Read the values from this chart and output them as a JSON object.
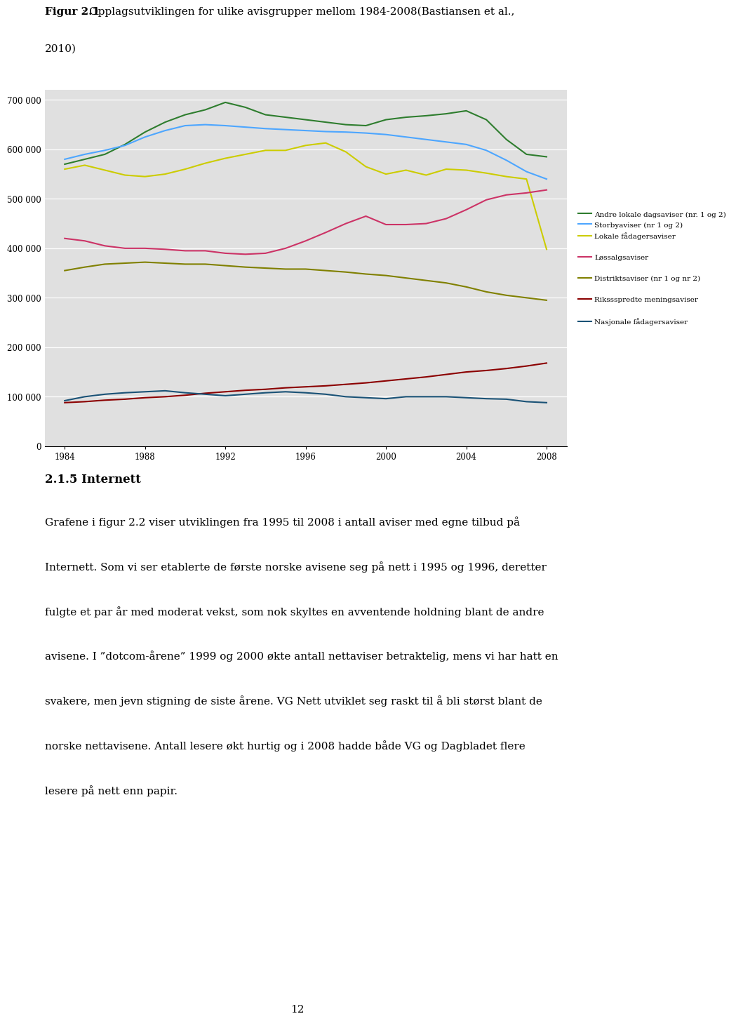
{
  "title_bold": "Figur 2.1",
  "title_rest": ": Opplagsutviklingen for ulike avisgrupper mellom 1984-2008(Bastiansen et al.,",
  "title_line2": "2010)",
  "section_header": "2.1.5 Internett",
  "body_text_lines": [
    "Grafene i figur 2.2 viser utviklingen fra 1995 til 2008 i antall aviser med egne tilbud på",
    "Internett. Som vi ser etablerte de første norske avisene seg på nett i 1995 og 1996, deretter",
    "fulgte et par år med moderat vekst, som nok skyltes en avventende holdning blant de andre",
    "avisene. I ”dotcom-årene” 1999 og 2000 økte antall nettaviser betraktelig, mens vi har hatt en",
    "svakere, men jevn stigning de siste årene. VG Nett utviklet seg raskt til å bli størst blant de",
    "norske nettavisene. Antall lesere økt hurtig og i 2008 hadde både VG og Dagbladet flere",
    "lesere på nett enn papir."
  ],
  "page_number": "12",
  "years": [
    1984,
    1985,
    1986,
    1987,
    1988,
    1989,
    1990,
    1991,
    1992,
    1993,
    1994,
    1995,
    1996,
    1997,
    1998,
    1999,
    2000,
    2001,
    2002,
    2003,
    2004,
    2005,
    2006,
    2007,
    2008
  ],
  "series": {
    "Andre lokale dagsaviser (nr. 1 og 2)": {
      "color": "#2e7d2e",
      "data": [
        570000,
        580000,
        590000,
        610000,
        635000,
        655000,
        670000,
        680000,
        695000,
        685000,
        670000,
        665000,
        660000,
        655000,
        650000,
        648000,
        660000,
        665000,
        668000,
        672000,
        678000,
        660000,
        620000,
        590000,
        585000
      ]
    },
    "Storbyaviser (nr 1 og 2)": {
      "color": "#4da6ff",
      "data": [
        580000,
        590000,
        598000,
        608000,
        625000,
        638000,
        648000,
        650000,
        648000,
        645000,
        642000,
        640000,
        638000,
        636000,
        635000,
        633000,
        630000,
        625000,
        620000,
        615000,
        610000,
        598000,
        578000,
        555000,
        540000
      ]
    },
    "Lokale fådagersaviser": {
      "color": "#cccc00",
      "data": [
        560000,
        568000,
        558000,
        548000,
        545000,
        550000,
        560000,
        572000,
        582000,
        590000,
        598000,
        598000,
        608000,
        613000,
        595000,
        565000,
        550000,
        558000,
        548000,
        560000,
        558000,
        552000,
        545000,
        540000,
        398000
      ]
    },
    "Løssalgsaviser": {
      "color": "#cc3366",
      "data": [
        420000,
        415000,
        405000,
        400000,
        400000,
        398000,
        395000,
        395000,
        390000,
        388000,
        390000,
        400000,
        415000,
        432000,
        450000,
        465000,
        448000,
        448000,
        450000,
        460000,
        478000,
        498000,
        508000,
        512000,
        518000
      ]
    },
    "Distriktsaviser (nr 1 og nr 2)": {
      "color": "#808000",
      "data": [
        355000,
        362000,
        368000,
        370000,
        372000,
        370000,
        368000,
        368000,
        365000,
        362000,
        360000,
        358000,
        358000,
        355000,
        352000,
        348000,
        345000,
        340000,
        335000,
        330000,
        322000,
        312000,
        305000,
        300000,
        295000
      ]
    },
    "Rikssspredte meningsaviser": {
      "color": "#8b0000",
      "data": [
        88000,
        90000,
        93000,
        95000,
        98000,
        100000,
        103000,
        107000,
        110000,
        113000,
        115000,
        118000,
        120000,
        122000,
        125000,
        128000,
        132000,
        136000,
        140000,
        145000,
        150000,
        153000,
        157000,
        162000,
        168000
      ]
    },
    "Nasjonale fådagersaviser": {
      "color": "#1a5276",
      "data": [
        92000,
        100000,
        105000,
        108000,
        110000,
        112000,
        108000,
        105000,
        102000,
        105000,
        108000,
        110000,
        108000,
        105000,
        100000,
        98000,
        96000,
        100000,
        100000,
        100000,
        98000,
        96000,
        95000,
        90000,
        88000
      ]
    }
  },
  "ylim": [
    0,
    720000
  ],
  "yticks": [
    0,
    100000,
    200000,
    300000,
    400000,
    500000,
    600000,
    700000
  ],
  "ytick_labels": [
    "0",
    "100 000",
    "200 000",
    "300 000",
    "400 000",
    "500 000",
    "600 000",
    "700 000"
  ],
  "xticks": [
    1984,
    1988,
    1992,
    1996,
    2000,
    2004,
    2008
  ],
  "chart_bg": "#e0e0e0",
  "legend_order": [
    "Andre lokale dagsaviser (nr. 1 og 2)",
    "Storbyaviser (nr 1 og 2)",
    "Lokale fådagersaviser",
    "Løssalgsaviser",
    "Distriktsaviser (nr 1 og nr 2)",
    "Rikssspredte meningsaviser",
    "Nasjonale fådagersaviser"
  ],
  "legend_labels_display": [
    "Andre lokale dagsaviser (nr. 1 og 2)",
    "Storbyaviser (nr 1 og 2)",
    "Lokale fådagersaviser",
    "Løssalgsaviser",
    "Distriktsaviser (nr 1 og nr 2)",
    "Rikssspredte meningsaviser",
    "Nasjonale fådagersaviser"
  ]
}
